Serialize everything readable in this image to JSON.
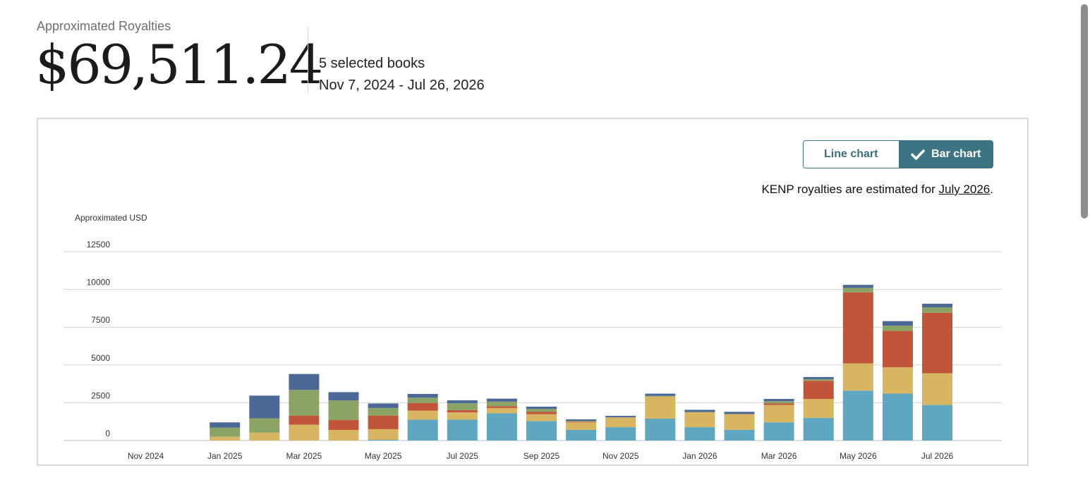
{
  "header": {
    "label": "Approximated Royalties",
    "total": "$69,511.24",
    "books": "5 selected books",
    "range": "Nov 7, 2024 - Jul 26, 2026"
  },
  "toggle": {
    "line_label": "Line chart",
    "bar_label": "Bar chart",
    "selected": "bar",
    "check_icon": "check-icon"
  },
  "note": {
    "prefix": "KENP royalties are estimated for ",
    "link": "July 2026",
    "suffix": "."
  },
  "colors": {
    "accent": "#3c7484",
    "stack": [
      "#5fa6c0",
      "#d8b561",
      "#c2543a",
      "#8ca366",
      "#4c6896"
    ]
  },
  "chart_data": {
    "type": "bar",
    "stacked": true,
    "ylabel": "Approximated USD",
    "ylim": [
      0,
      12500
    ],
    "yticks": [
      0,
      2500,
      5000,
      7500,
      10000,
      12500
    ],
    "grid": true,
    "categories": [
      "Nov 2024",
      "Dec 2024",
      "Jan 2025",
      "Feb 2025",
      "Mar 2025",
      "Apr 2025",
      "May 2025",
      "Jun 2025",
      "Jul 2025",
      "Aug 2025",
      "Sep 2025",
      "Oct 2025",
      "Nov 2025",
      "Dec 2025",
      "Jan 2026",
      "Feb 2026",
      "Mar 2026",
      "Apr 2026",
      "May 2026",
      "Jun 2026",
      "Jul 2026"
    ],
    "xtick_labels": [
      "Nov 2024",
      "",
      "Jan 2025",
      "",
      "Mar 2025",
      "",
      "May 2025",
      "",
      "Jul 2025",
      "",
      "Sep 2025",
      "",
      "Nov 2025",
      "",
      "Jan 2026",
      "",
      "Mar 2026",
      "",
      "May 2026",
      "",
      "Jul 2026"
    ],
    "series": [
      {
        "values": [
          0,
          0,
          0,
          0,
          0,
          0,
          50,
          1380,
          1380,
          1800,
          1290,
          700,
          880,
          1450,
          880,
          700,
          1200,
          1500,
          3300,
          3100,
          2350
        ]
      },
      {
        "values": [
          0,
          0,
          250,
          520,
          1050,
          700,
          700,
          600,
          480,
          350,
          450,
          500,
          650,
          1450,
          1000,
          1050,
          1150,
          1250,
          1800,
          1750,
          2100
        ]
      },
      {
        "values": [
          0,
          0,
          0,
          0,
          600,
          650,
          900,
          500,
          150,
          120,
          150,
          50,
          0,
          0,
          0,
          0,
          100,
          1200,
          4700,
          2400,
          4000
        ]
      },
      {
        "values": [
          0,
          0,
          600,
          950,
          1700,
          1300,
          500,
          350,
          450,
          300,
          200,
          50,
          0,
          50,
          0,
          0,
          150,
          100,
          300,
          350,
          350
        ]
      },
      {
        "values": [
          0,
          0,
          350,
          1500,
          1050,
          550,
          300,
          250,
          200,
          200,
          150,
          100,
          100,
          150,
          150,
          150,
          150,
          150,
          200,
          300,
          250
        ]
      }
    ]
  }
}
